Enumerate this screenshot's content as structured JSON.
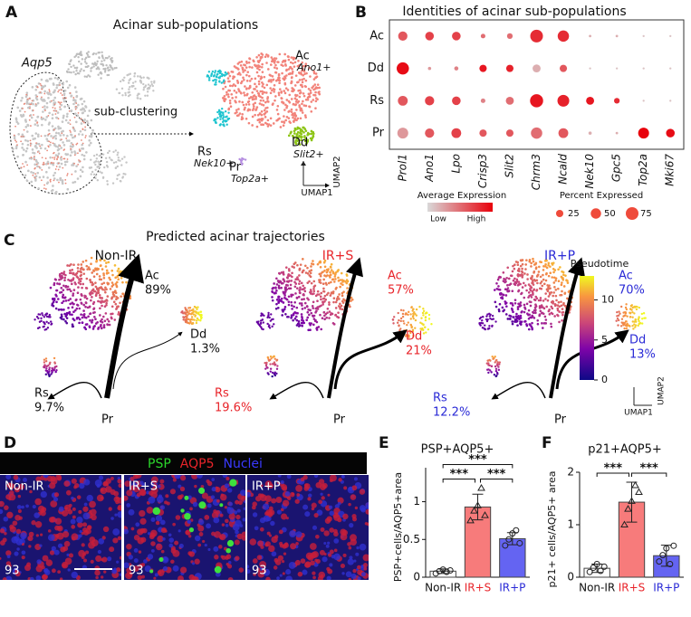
{
  "panels": {
    "a": {
      "label": "A",
      "title": "Acinar sub-populations",
      "marker": "Aqp5",
      "arrow": "sub-clustering",
      "clusters": [
        {
          "name": "Ac",
          "gene": "Ano1+"
        },
        {
          "name": "Dd",
          "gene": "Slit2+"
        },
        {
          "name": "Rs",
          "gene": "Nek10+"
        },
        {
          "name": "Pr",
          "gene": "Top2a+"
        }
      ],
      "umap_x": "UMAP1",
      "umap_y": "UMAP2"
    },
    "b": {
      "label": "B"
    },
    "c": {
      "label": "C",
      "title": "Predicted acinar trajectories",
      "conditions": [
        {
          "name": "Non-IR",
          "color": "#111111",
          "branches": [
            {
              "name": "Ac",
              "share": "89%"
            },
            {
              "name": "Dd",
              "share": "1.3%"
            },
            {
              "name": "Rs",
              "share": "9.7%"
            },
            {
              "name": "Pr"
            }
          ]
        },
        {
          "name": "IR+S",
          "color": "#e8242a",
          "branches": [
            {
              "name": "Ac",
              "share": "57%"
            },
            {
              "name": "Dd",
              "share": "21%"
            },
            {
              "name": "Rs",
              "share": "19.6%"
            },
            {
              "name": "Pr"
            }
          ]
        },
        {
          "name": "IR+P",
          "color": "#2a2ad6",
          "branches": [
            {
              "name": "Ac",
              "share": "70%"
            },
            {
              "name": "Dd",
              "share": "13%"
            },
            {
              "name": "Rs",
              "share": "12.2%"
            },
            {
              "name": "Pr"
            }
          ]
        }
      ],
      "colorbar": {
        "title": "Pseudotime",
        "lim": [
          0,
          13
        ],
        "ticks": [
          0,
          5,
          10
        ]
      },
      "umap_x": "UMAP1",
      "umap_y": "UMAP2"
    },
    "d": {
      "label": "D",
      "stains": [
        {
          "name": "PSP",
          "color": "#2bd52b"
        },
        {
          "name": "AQP5",
          "color": "#e8242a"
        },
        {
          "name": "Nuclei",
          "color": "#3a3aff"
        }
      ],
      "images": [
        {
          "name": "Non-IR",
          "id": "93"
        },
        {
          "name": "IR+S",
          "id": "93"
        },
        {
          "name": "IR+P",
          "id": "93"
        }
      ]
    },
    "e": {
      "label": "E"
    },
    "f": {
      "label": "F"
    }
  },
  "chart_data": [
    {
      "type": "dot",
      "title": "Identities of acinar sub-populations",
      "categories": [
        "Prol1",
        "Ano1",
        "Lpo",
        "Crisp3",
        "Slit2",
        "Chrm3",
        "Ncald",
        "Nek10",
        "Gpc5",
        "Top2a",
        "Mki67"
      ],
      "series": [
        {
          "name": "Ac",
          "values": [
            40,
            35,
            35,
            10,
            15,
            75,
            60,
            3,
            3,
            2,
            2
          ],
          "expression": [
            0.6,
            0.7,
            0.7,
            0.5,
            0.5,
            0.8,
            0.8,
            0.2,
            0.2,
            0.1,
            0.1
          ]
        },
        {
          "name": "Dd",
          "values": [
            70,
            5,
            8,
            25,
            25,
            30,
            25,
            2,
            2,
            2,
            2
          ],
          "expression": [
            0.95,
            0.3,
            0.4,
            0.9,
            0.85,
            0.2,
            0.6,
            0.1,
            0.1,
            0.1,
            0.1
          ]
        },
        {
          "name": "Rs",
          "values": [
            45,
            40,
            35,
            10,
            30,
            80,
            65,
            30,
            15,
            2,
            2
          ],
          "expression": [
            0.6,
            0.7,
            0.7,
            0.4,
            0.5,
            0.9,
            0.85,
            0.9,
            0.8,
            0.1,
            0.1
          ]
        },
        {
          "name": "Pr",
          "values": [
            55,
            40,
            45,
            25,
            25,
            60,
            45,
            5,
            3,
            55,
            35
          ],
          "expression": [
            0.3,
            0.6,
            0.7,
            0.6,
            0.6,
            0.5,
            0.6,
            0.2,
            0.2,
            1.0,
            0.95
          ]
        }
      ],
      "size_legend": {
        "title": "Percent Expressed",
        "values": [
          25,
          50,
          75
        ]
      },
      "color_legend": {
        "title": "Average Expression",
        "low": "Low",
        "high": "High",
        "colors": [
          "#d9d9d9",
          "#e8000b"
        ]
      }
    },
    {
      "type": "bar",
      "title": "PSP+AQP5+",
      "y_label": "PSP+cells/AQP5+area",
      "categories": [
        "Non-IR",
        "IR+S",
        "IR+P"
      ],
      "category_colors": [
        "#111111",
        "#e8242a",
        "#2a2ad6"
      ],
      "colors": [
        "#ffffff",
        "#f77b7b",
        "#6464f2"
      ],
      "values": [
        0.08,
        0.93,
        0.51
      ],
      "errors": [
        0.03,
        0.17,
        0.08
      ],
      "points": [
        [
          0.05,
          0.08,
          0.1,
          0.07,
          0.09
        ],
        [
          0.75,
          0.88,
          0.95,
          1.18,
          0.82
        ],
        [
          0.42,
          0.5,
          0.58,
          0.62,
          0.45
        ]
      ],
      "ylim": [
        0,
        1.45
      ],
      "yticks": [
        0,
        0.5,
        1
      ],
      "significance": [
        "***",
        "***",
        "***"
      ]
    },
    {
      "type": "bar",
      "title": "p21+AQP5+",
      "y_label": "p21+ cells/AQP5+ area",
      "categories": [
        "Non-IR",
        "IR+S",
        "IR+P"
      ],
      "category_colors": [
        "#111111",
        "#e8242a",
        "#2a2ad6"
      ],
      "colors": [
        "#ffffff",
        "#f77b7b",
        "#6464f2"
      ],
      "values": [
        0.17,
        1.43,
        0.41
      ],
      "errors": [
        0.08,
        0.38,
        0.2
      ],
      "points": [
        [
          0.1,
          0.18,
          0.25,
          0.12,
          0.2
        ],
        [
          1.0,
          1.3,
          1.45,
          1.75,
          1.62
        ],
        [
          0.3,
          0.42,
          0.55,
          0.25,
          0.6
        ]
      ],
      "ylim": [
        0,
        2
      ],
      "yticks": [
        0,
        1,
        2
      ],
      "significance": [
        "***",
        "***"
      ]
    }
  ]
}
